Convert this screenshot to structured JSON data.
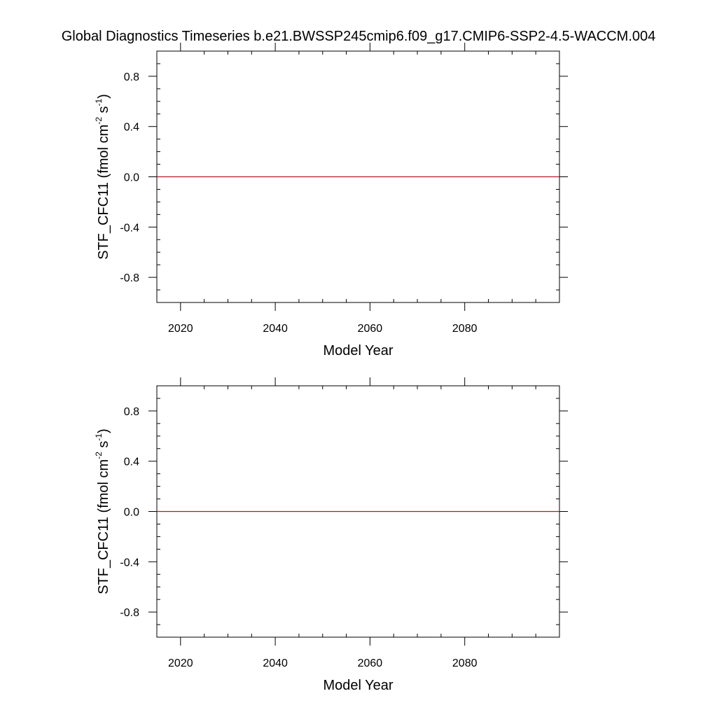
{
  "title": "Global Diagnostics Timeseries b.e21.BWSSP245cmip6.f09_g17.CMIP6-SSP2-4.5-WACCM.004",
  "colors": {
    "background": "#ffffff",
    "axes": "#000000",
    "series": "#b2182b",
    "zero_line": "#000000"
  },
  "chart_data": [
    {
      "type": "line",
      "title": "",
      "xlabel": "Model Year",
      "ylabel": {
        "main": "STF_CFC11 (fmol cm",
        "exp1": "-2",
        "mid": " s",
        "exp2": "-1",
        "close": ")"
      },
      "xlim": [
        2015,
        2100
      ],
      "ylim": [
        -1.0,
        1.0
      ],
      "xticks": [
        2020,
        2040,
        2060,
        2080
      ],
      "xtick_labels": [
        "2020",
        "2040",
        "2060",
        "2080"
      ],
      "yticks": [
        0.8,
        0.4,
        0.0,
        -0.4,
        -0.8
      ],
      "ytick_labels": [
        "0.8",
        "0.4",
        "0.0",
        "-0.4",
        "-0.8"
      ],
      "x_minor_step": 5,
      "y_minor_step": 0.1,
      "grid": false,
      "series": [
        {
          "x": [
            2015,
            2100
          ],
          "y": [
            0.0,
            0.0
          ]
        }
      ]
    },
    {
      "type": "line",
      "title": "",
      "xlabel": "Model Year",
      "ylabel": {
        "main": "STF_CFC11 (fmol cm",
        "exp1": "-2",
        "mid": " s",
        "exp2": "-1",
        "close": ")"
      },
      "xlim": [
        2015,
        2100
      ],
      "ylim": [
        -1.0,
        1.0
      ],
      "xticks": [
        2020,
        2040,
        2060,
        2080
      ],
      "xtick_labels": [
        "2020",
        "2040",
        "2060",
        "2080"
      ],
      "yticks": [
        0.8,
        0.4,
        0.0,
        -0.4,
        -0.8
      ],
      "ytick_labels": [
        "0.8",
        "0.4",
        "0.0",
        "-0.4",
        "-0.8"
      ],
      "x_minor_step": 5,
      "y_minor_step": 0.1,
      "grid": false,
      "series": [
        {
          "x": [
            2015,
            2100
          ],
          "y": [
            0.0,
            0.0
          ]
        }
      ]
    }
  ]
}
